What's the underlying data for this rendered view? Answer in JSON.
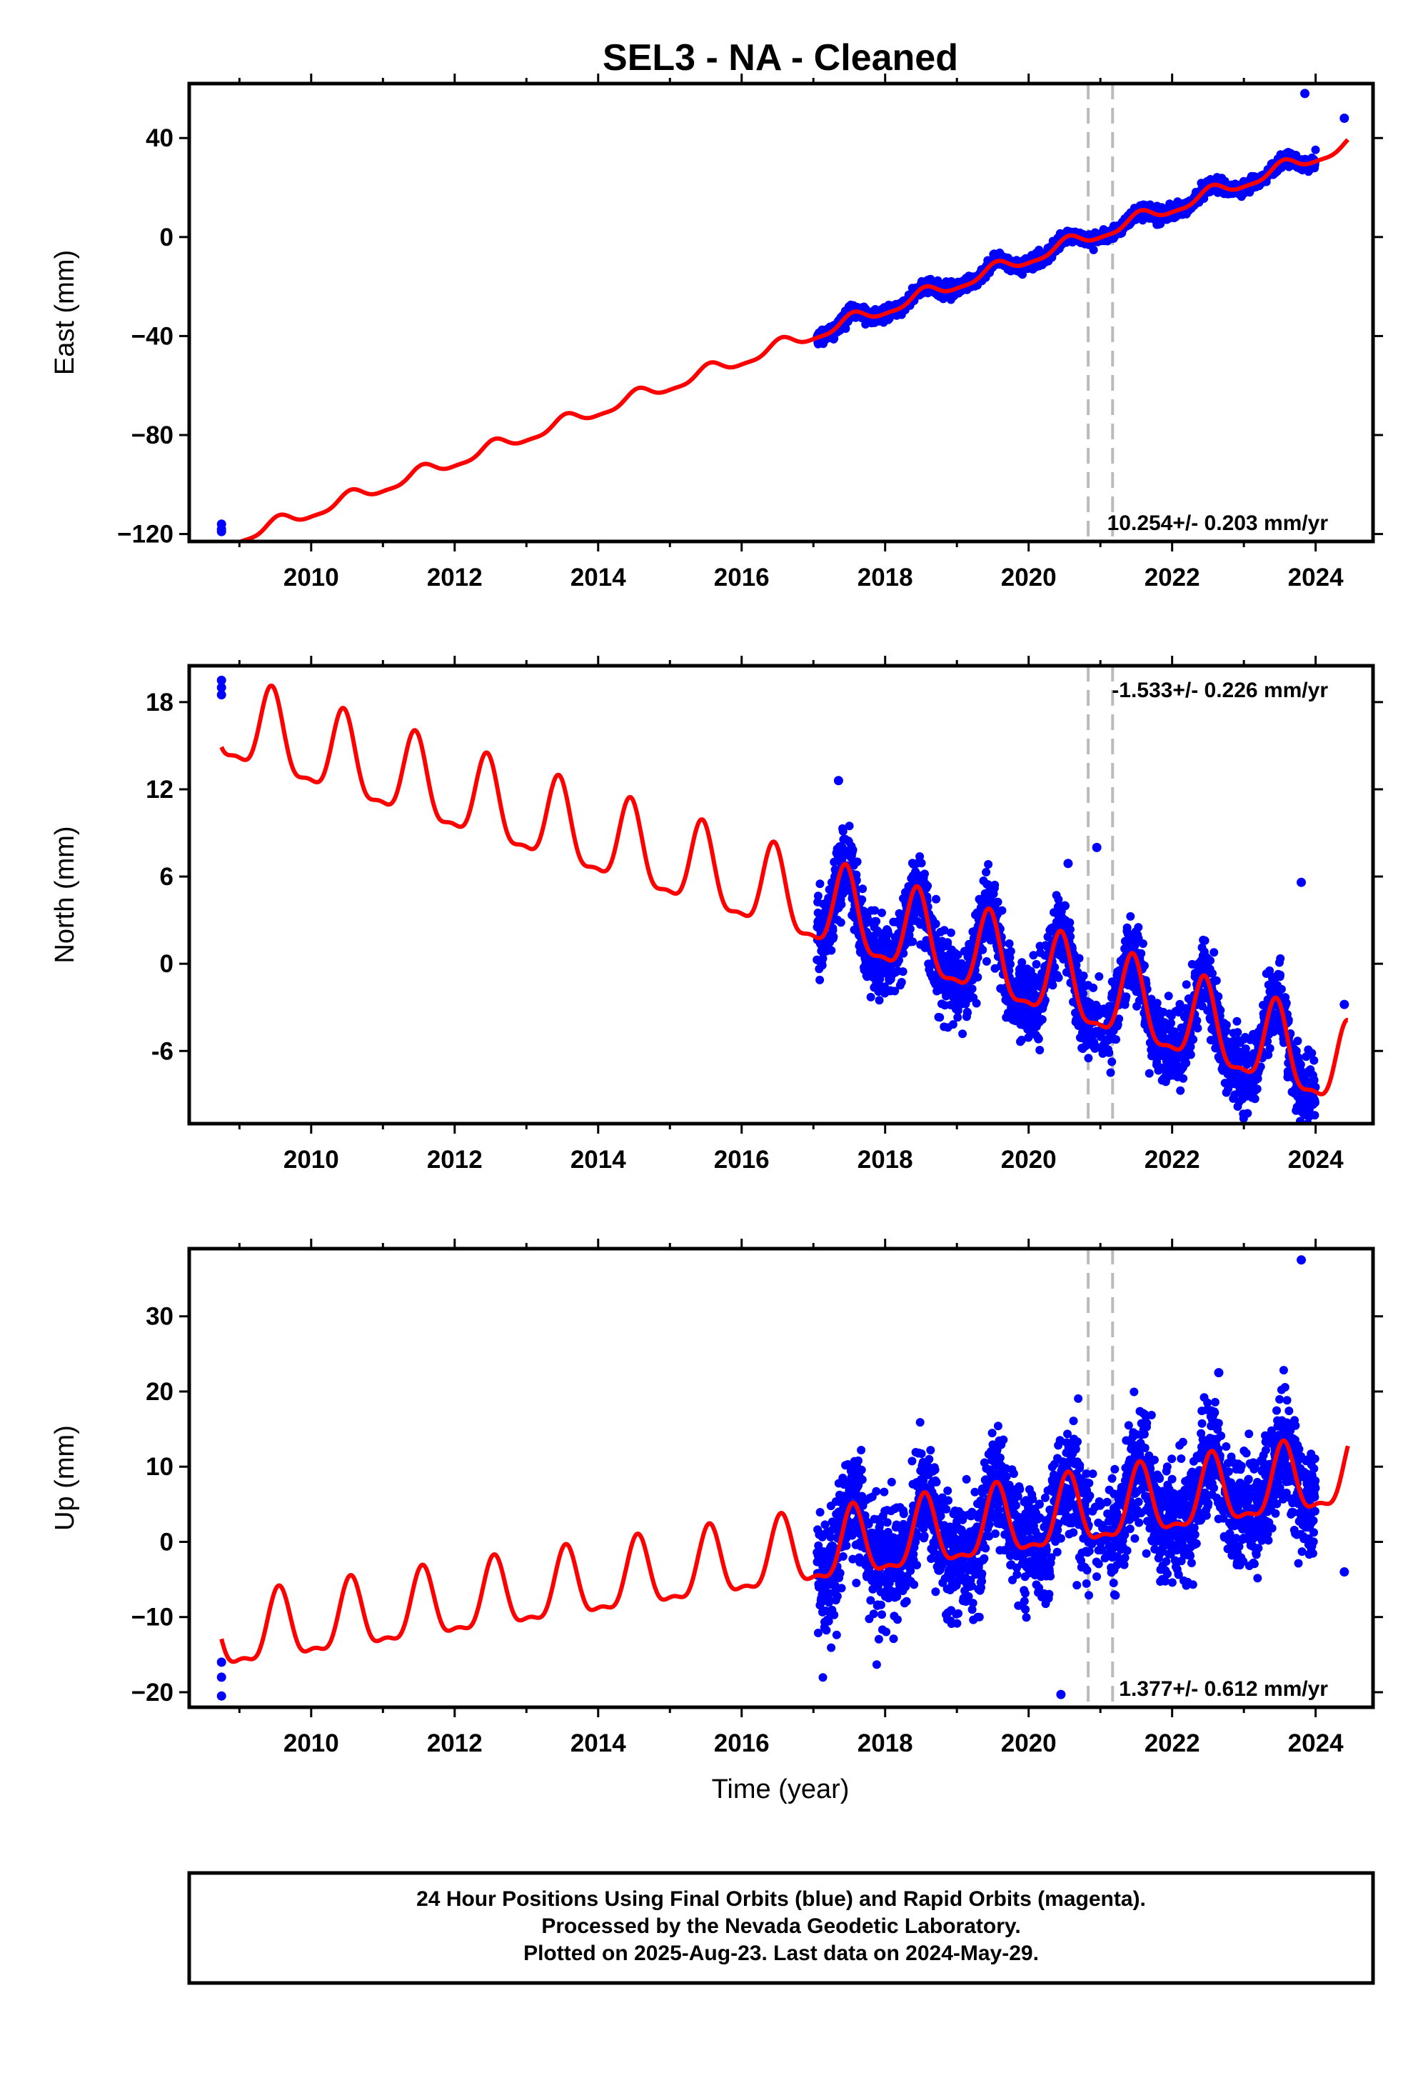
{
  "chart_data": {
    "type": "scatter",
    "title": "SEL3  - NA - Cleaned",
    "xlabel": "Time (year)",
    "xlim": [
      2008.3,
      2024.8
    ],
    "xticks": [
      2010,
      2012,
      2014,
      2016,
      2018,
      2020,
      2022,
      2024
    ],
    "xtick_labels": [
      "2010",
      "2012",
      "2014",
      "2016",
      "2018",
      "2020",
      "2022",
      "2024"
    ],
    "event_lines": [
      2020.83,
      2021.17
    ],
    "colors": {
      "observations": "#0000ff",
      "model": "#ff0000",
      "event": "#bbbbbb"
    },
    "caption": [
      "24 Hour Positions Using Final Orbits (blue) and Rapid Orbits (magenta).",
      "Processed by the Nevada Geodetic Laboratory.",
      "Plotted on 2025-Aug-23. Last data on 2024-May-29."
    ],
    "panels": [
      {
        "component": "east",
        "ylabel": "East (mm)",
        "ylim": [
          -123,
          62
        ],
        "yticks": [
          -120,
          -80,
          -40,
          0,
          40
        ],
        "ytick_labels": [
          "−120",
          "−80",
          "−40",
          "0",
          "40"
        ],
        "rate_label": "10.254+/- 0.203 mm/yr",
        "rate_anchor": "bottom-right",
        "model": {
          "y0": -124.0,
          "rate": 10.254,
          "annual_amp": 2.6,
          "annual_phase_peak": 0.55,
          "semi_amp": 0.8
        },
        "scatter": {
          "start": 2017.05,
          "end": 2024.0,
          "noise": 1.3,
          "gaps": [
            [
              2020.83,
              2021.17
            ]
          ]
        },
        "extra_points": [
          [
            2008.75,
            -116
          ],
          [
            2008.75,
            -118
          ],
          [
            2008.75,
            -119
          ],
          [
            2023.85,
            58
          ],
          [
            2024.4,
            48
          ]
        ]
      },
      {
        "component": "north",
        "ylabel": "North (mm)",
        "ylim": [
          -11,
          20.5
        ],
        "yticks": [
          -6,
          0,
          6,
          12,
          18
        ],
        "ytick_labels": [
          "-6",
          "0",
          "6",
          "12",
          "18"
        ],
        "rate_label": "-1.533+/- 0.226 mm/yr",
        "rate_anchor": "top-right",
        "model": {
          "y0": 16.5,
          "rate": -1.533,
          "annual_amp": 2.8,
          "annual_phase_peak": 0.45,
          "semi_amp": 0.9
        },
        "scatter": {
          "start": 2017.05,
          "end": 2024.0,
          "noise": 1.3,
          "gaps": [
            [
              2020.83,
              2021.17
            ]
          ]
        },
        "extra_points": [
          [
            2008.75,
            19.5
          ],
          [
            2008.75,
            19.0
          ],
          [
            2008.75,
            18.5
          ],
          [
            2017.35,
            12.6
          ],
          [
            2020.55,
            6.9
          ],
          [
            2020.95,
            8.0
          ],
          [
            2023.8,
            5.6
          ],
          [
            2024.4,
            -2.8
          ]
        ]
      },
      {
        "component": "up",
        "ylabel": "Up (mm)",
        "ylim": [
          -22,
          39
        ],
        "yticks": [
          -20,
          -10,
          0,
          10,
          20,
          30
        ],
        "ytick_labels": [
          "−20",
          "−10",
          "0",
          "10",
          "20",
          "30"
        ],
        "rate_label": "1.377+/- 0.612 mm/yr",
        "rate_anchor": "bottom-right",
        "model": {
          "y0": -13.0,
          "rate": 1.377,
          "annual_amp": 4.5,
          "annual_phase_peak": 0.55,
          "semi_amp": 1.6
        },
        "scatter": {
          "start": 2017.05,
          "end": 2024.0,
          "noise": 3.8,
          "gaps": [
            [
              2020.83,
              2021.17
            ]
          ]
        },
        "extra_points": [
          [
            2008.75,
            -16
          ],
          [
            2008.75,
            -18
          ],
          [
            2008.75,
            -20.5
          ],
          [
            2020.45,
            -20.3
          ],
          [
            2022.65,
            22.5
          ],
          [
            2023.8,
            37.5
          ],
          [
            2024.4,
            -4
          ]
        ]
      }
    ]
  }
}
